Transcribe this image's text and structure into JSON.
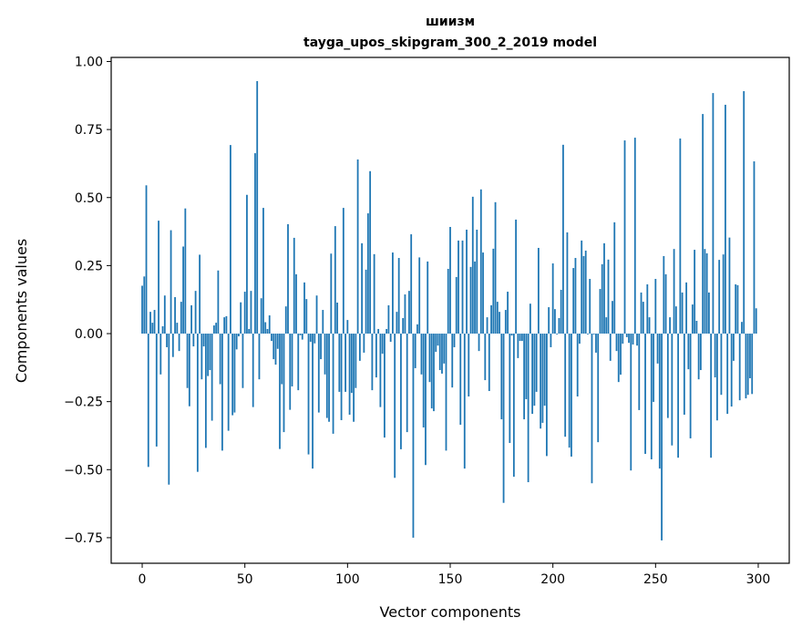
{
  "chart_data": {
    "type": "bar",
    "title": "шиизм",
    "subtitle": "tayga_upos_skipgram_300_2_2019 model",
    "xlabel": "Vector components",
    "ylabel": "Components values",
    "xlim": [
      -15.1,
      315.1
    ],
    "ylim": [
      -0.844,
      1.015
    ],
    "xticks": [
      0,
      50,
      100,
      150,
      200,
      250,
      300
    ],
    "xtick_labels": [
      "0",
      "50",
      "100",
      "150",
      "200",
      "250",
      "300"
    ],
    "yticks": [
      1.0,
      0.75,
      0.5,
      0.25,
      0.0,
      -0.25,
      -0.5,
      -0.75
    ],
    "ytick_labels": [
      "1.00",
      "0.75",
      "0.50",
      "0.25",
      "0.00",
      "−0.25",
      "−0.50",
      "−0.75"
    ],
    "grid": false,
    "color": "#1f77b4",
    "values": [
      0.176,
      0.21,
      0.545,
      -0.49,
      0.08,
      0.04,
      0.087,
      -0.415,
      0.415,
      -0.15,
      0.027,
      0.14,
      -0.05,
      -0.555,
      0.38,
      -0.086,
      0.134,
      0.04,
      -0.064,
      0.117,
      0.32,
      0.46,
      -0.2,
      -0.267,
      0.104,
      -0.047,
      0.157,
      -0.508,
      0.29,
      -0.168,
      -0.047,
      -0.42,
      -0.156,
      -0.134,
      -0.32,
      0.03,
      0.04,
      0.232,
      -0.186,
      -0.43,
      0.06,
      0.064,
      -0.357,
      0.693,
      -0.3,
      -0.29,
      -0.058,
      -0.01,
      0.115,
      -0.2,
      0.154,
      0.51,
      0.017,
      0.157,
      -0.27,
      0.663,
      0.928,
      -0.168,
      0.13,
      0.462,
      0.042,
      0.017,
      0.067,
      -0.027,
      -0.094,
      -0.114,
      -0.056,
      -0.424,
      -0.186,
      -0.362,
      0.1,
      0.402,
      -0.28,
      -0.194,
      0.352,
      0.218,
      -0.208,
      -0.006,
      -0.022,
      0.188,
      0.127,
      -0.444,
      -0.03,
      -0.496,
      -0.036,
      0.14,
      -0.29,
      -0.094,
      0.087,
      -0.15,
      -0.31,
      -0.324,
      0.294,
      -0.368,
      0.395,
      0.114,
      -0.214,
      -0.318,
      0.462,
      -0.214,
      0.05,
      -0.298,
      -0.218,
      -0.324,
      -0.2,
      0.64,
      -0.1,
      0.332,
      -0.07,
      0.235,
      0.442,
      0.597,
      -0.208,
      0.292,
      -0.161,
      0.017,
      -0.27,
      -0.074,
      -0.382,
      0.017,
      0.104,
      -0.03,
      0.298,
      -0.53,
      0.08,
      0.278,
      -0.425,
      0.057,
      0.144,
      -0.362,
      0.157,
      0.365,
      -0.75,
      -0.127,
      0.034,
      0.28,
      -0.15,
      -0.345,
      -0.483,
      0.265,
      -0.178,
      -0.275,
      -0.285,
      -0.067,
      -0.044,
      -0.134,
      -0.147,
      -0.11,
      -0.43,
      0.238,
      0.392,
      -0.198,
      -0.05,
      0.208,
      0.342,
      -0.335,
      0.342,
      -0.496,
      0.382,
      -0.231,
      0.245,
      0.503,
      0.265,
      0.382,
      -0.064,
      0.53,
      0.298,
      -0.171,
      0.06,
      -0.211,
      0.104,
      0.312,
      0.483,
      0.117,
      0.08,
      -0.315,
      -0.622,
      0.087,
      0.154,
      -0.402,
      -0.007,
      -0.526,
      0.419,
      -0.09,
      -0.027,
      -0.027,
      -0.315,
      -0.241,
      -0.546,
      0.11,
      -0.295,
      -0.265,
      -0.214,
      0.315,
      -0.349,
      -0.328,
      -0.265,
      -0.45,
      0.097,
      -0.05,
      0.258,
      0.09,
      -0.003,
      0.057,
      0.161,
      0.694,
      -0.379,
      0.372,
      -0.419,
      -0.452,
      0.241,
      0.278,
      -0.231,
      -0.037,
      0.342,
      0.285,
      0.305,
      -0.003,
      0.201,
      -0.55,
      -0.003,
      -0.07,
      -0.399,
      0.164,
      0.255,
      0.332,
      0.06,
      0.272,
      -0.1,
      0.12,
      0.409,
      -0.064,
      -0.178,
      -0.151,
      -0.037,
      0.71,
      -0.013,
      -0.034,
      -0.503,
      -0.04,
      0.72,
      -0.044,
      -0.281,
      0.151,
      0.117,
      -0.442,
      0.181,
      0.06,
      -0.462,
      -0.251,
      0.201,
      -0.11,
      -0.496,
      -0.76,
      0.285,
      0.218,
      -0.31,
      0.06,
      -0.411,
      0.311,
      0.1,
      -0.456,
      0.717,
      0.151,
      -0.298,
      0.188,
      -0.131,
      -0.385,
      0.107,
      0.308,
      0.047,
      -0.168,
      -0.134,
      0.807,
      0.311,
      0.295,
      0.151,
      -0.456,
      0.884,
      -0.161,
      -0.319,
      0.271,
      -0.225,
      0.291,
      0.841,
      -0.295,
      0.353,
      -0.268,
      -0.1,
      0.181,
      0.178,
      -0.245,
      0.043,
      0.891,
      -0.238,
      -0.225,
      -0.164,
      -0.222,
      0.633,
      0.093
    ]
  }
}
